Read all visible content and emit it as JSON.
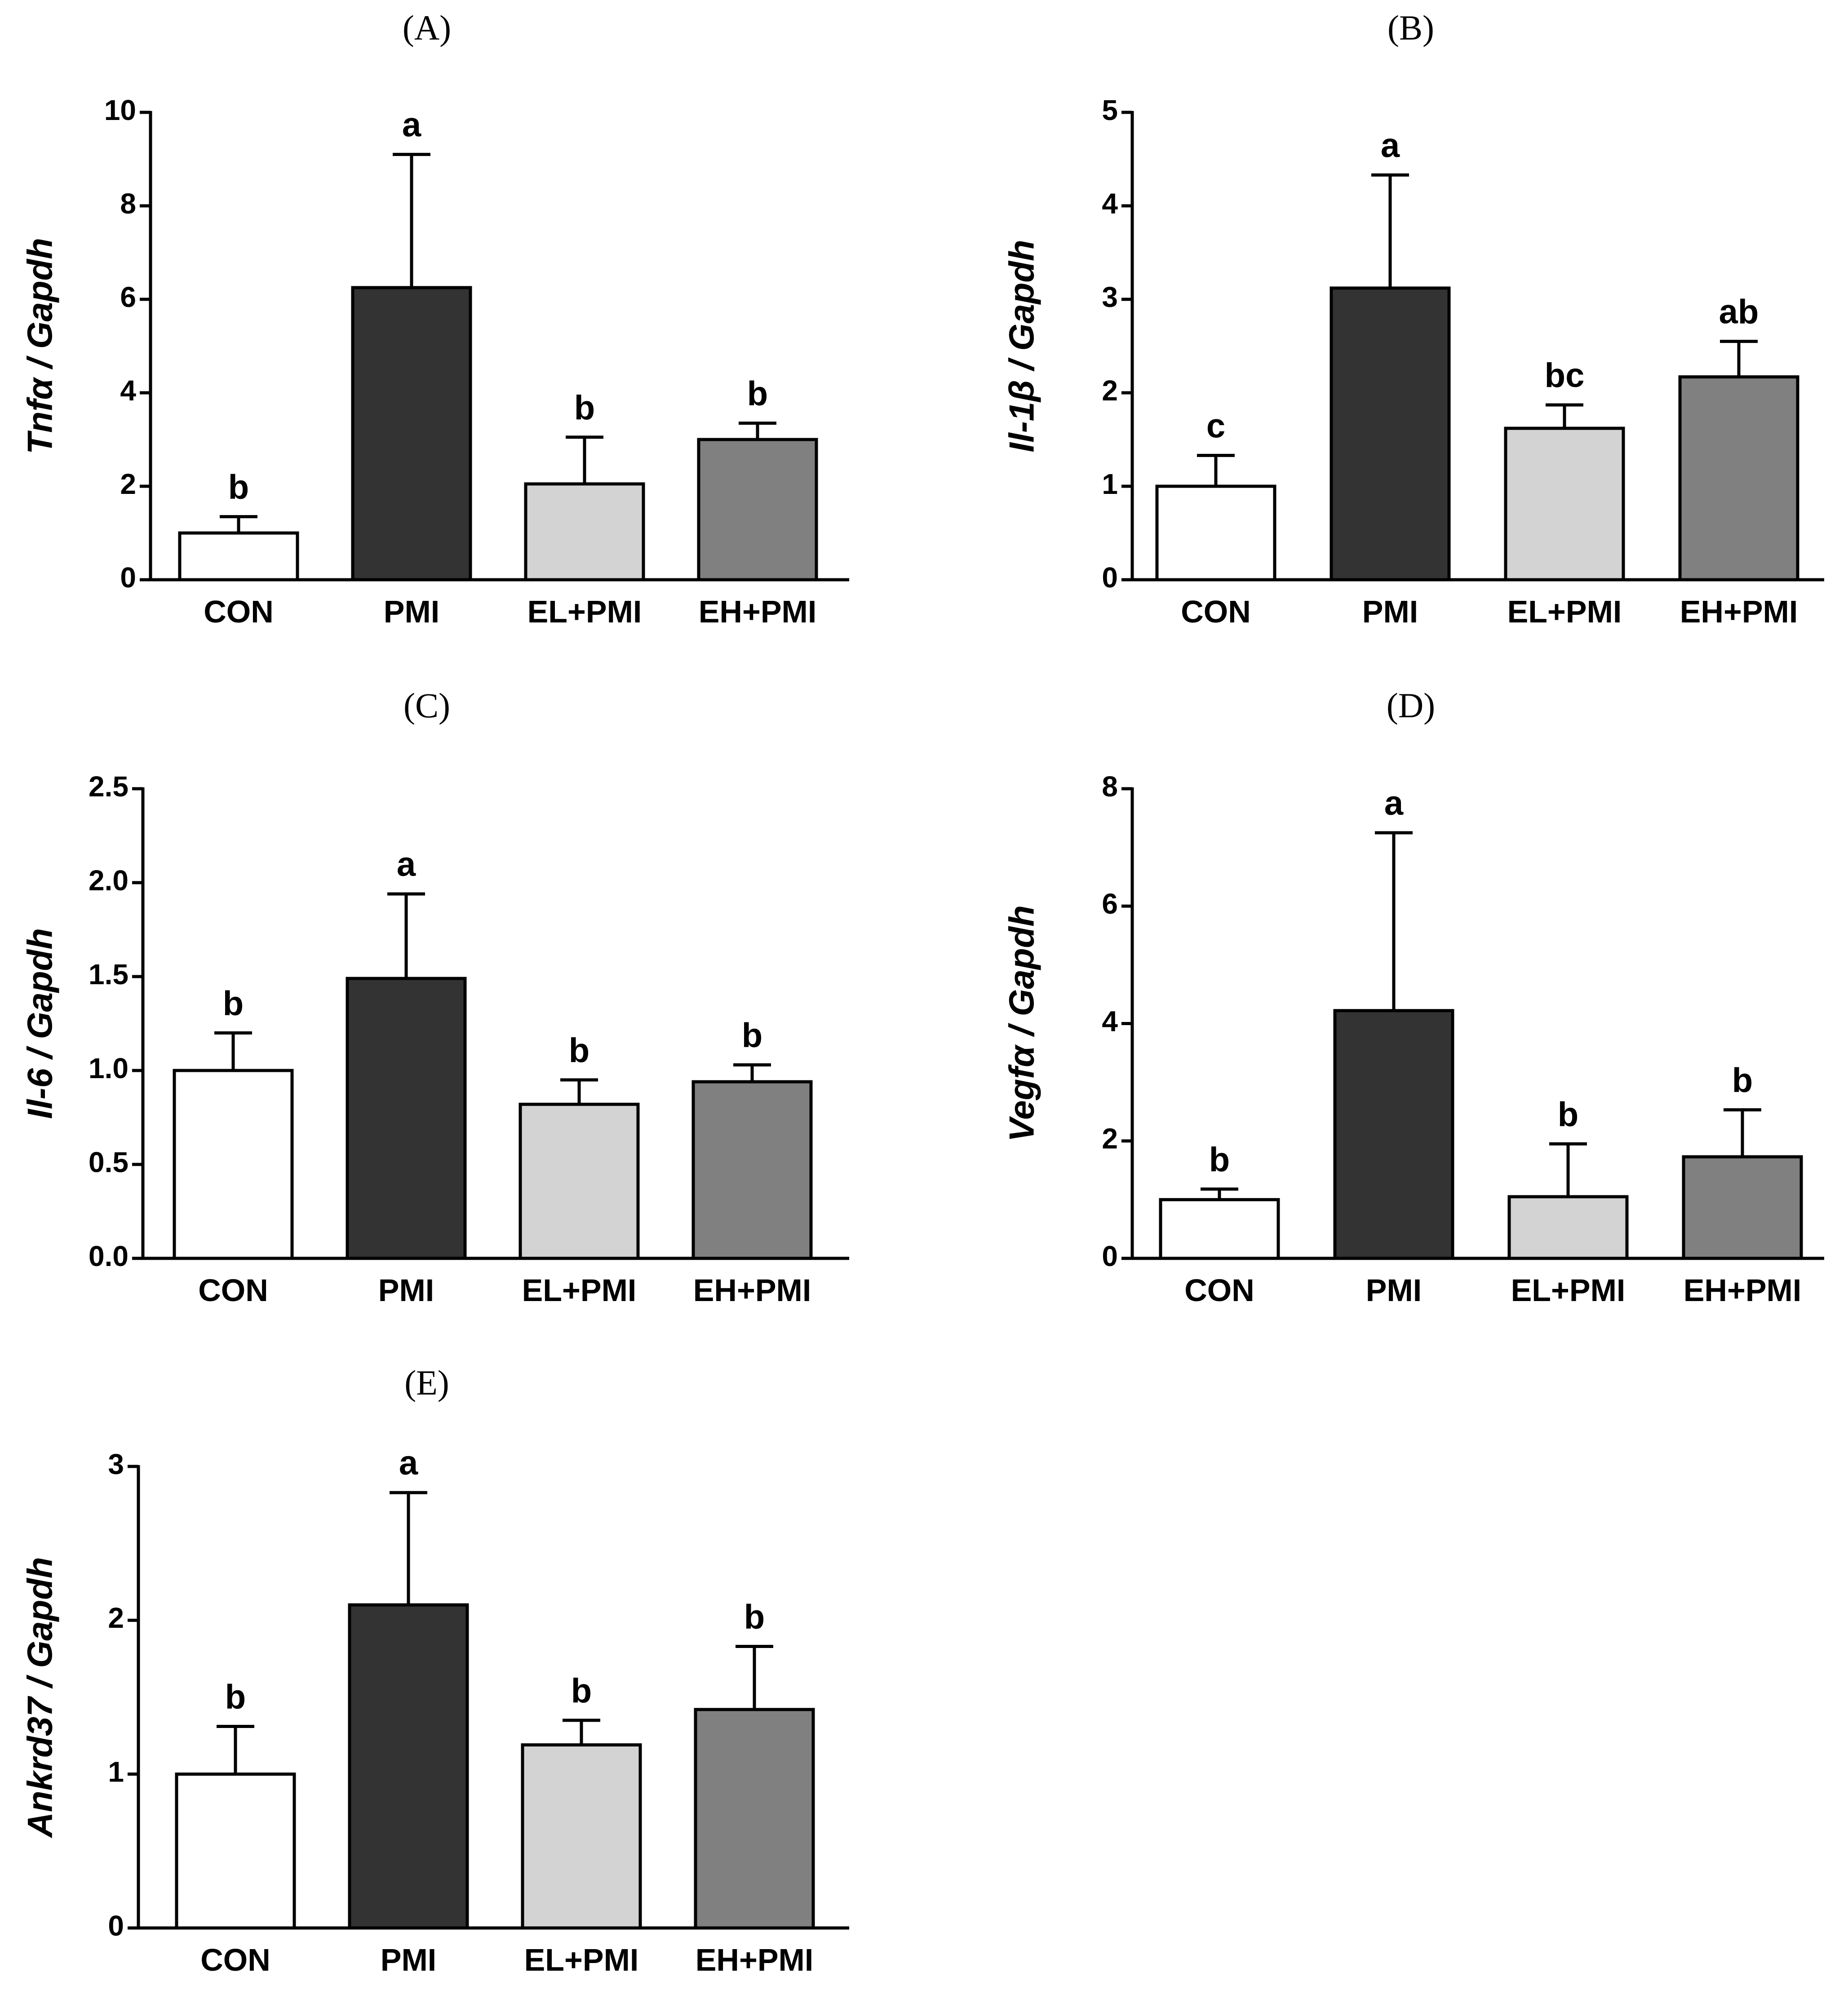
{
  "colors": {
    "CON": "#ffffff",
    "PMI": "#333333",
    "EL+PMI": "#d3d3d3",
    "EH+PMI": "#808080"
  },
  "chart_data": [
    {
      "type": "bar",
      "panel": "(A)",
      "ylabel": "Tnfα / Gapdh",
      "categories": [
        "CON",
        "PMI",
        "EL+PMI",
        "EH+PMI"
      ],
      "values": [
        1.0,
        6.25,
        2.05,
        3.0
      ],
      "errors": [
        0.35,
        2.85,
        1.0,
        0.35
      ],
      "significance": [
        "b",
        "a",
        "b",
        "b"
      ],
      "ylim": [
        0,
        10
      ],
      "yticks": [
        0,
        2,
        4,
        6,
        8,
        10
      ],
      "ytick_labels": [
        "0",
        "2",
        "4",
        "6",
        "8",
        "10"
      ]
    },
    {
      "type": "bar",
      "panel": "(B)",
      "ylabel": "Il-1β / Gapdh",
      "categories": [
        "CON",
        "PMI",
        "EL+PMI",
        "EH+PMI"
      ],
      "values": [
        1.0,
        3.12,
        1.62,
        2.17
      ],
      "errors": [
        0.33,
        1.21,
        0.25,
        0.38
      ],
      "significance": [
        "c",
        "a",
        "bc",
        "ab"
      ],
      "ylim": [
        0,
        5
      ],
      "yticks": [
        0,
        1,
        2,
        3,
        4,
        5
      ],
      "ytick_labels": [
        "0",
        "1",
        "2",
        "3",
        "4",
        "5"
      ]
    },
    {
      "type": "bar",
      "panel": "(C)",
      "ylabel": "Il-6 / Gapdh",
      "categories": [
        "CON",
        "PMI",
        "EL+PMI",
        "EH+PMI"
      ],
      "values": [
        1.0,
        1.49,
        0.82,
        0.94
      ],
      "errors": [
        0.2,
        0.45,
        0.13,
        0.09
      ],
      "significance": [
        "b",
        "a",
        "b",
        "b"
      ],
      "ylim": [
        0,
        2.5
      ],
      "yticks": [
        0,
        0.5,
        1.0,
        1.5,
        2.0,
        2.5
      ],
      "ytick_labels": [
        "0.0",
        "0.5",
        "1.0",
        "1.5",
        "2.0",
        "2.5"
      ]
    },
    {
      "type": "bar",
      "panel": "(D)",
      "ylabel": "Vegfα / Gapdh",
      "categories": [
        "CON",
        "PMI",
        "EL+PMI",
        "EH+PMI"
      ],
      "values": [
        1.0,
        4.22,
        1.05,
        1.73
      ],
      "errors": [
        0.18,
        3.03,
        0.9,
        0.8
      ],
      "significance": [
        "b",
        "a",
        "b",
        "b"
      ],
      "ylim": [
        0,
        8
      ],
      "yticks": [
        0,
        2,
        4,
        6,
        8
      ],
      "ytick_labels": [
        "0",
        "2",
        "4",
        "6",
        "8"
      ]
    },
    {
      "type": "bar",
      "panel": "(E)",
      "ylabel": "Ankrd37 / Gapdh",
      "categories": [
        "CON",
        "PMI",
        "EL+PMI",
        "EH+PMI"
      ],
      "values": [
        1.0,
        2.1,
        1.19,
        1.42
      ],
      "errors": [
        0.31,
        0.73,
        0.16,
        0.41
      ],
      "significance": [
        "b",
        "a",
        "b",
        "b"
      ],
      "ylim": [
        0,
        3
      ],
      "yticks": [
        0,
        1,
        2,
        3
      ],
      "ytick_labels": [
        "0",
        "1",
        "2",
        "3"
      ]
    }
  ]
}
